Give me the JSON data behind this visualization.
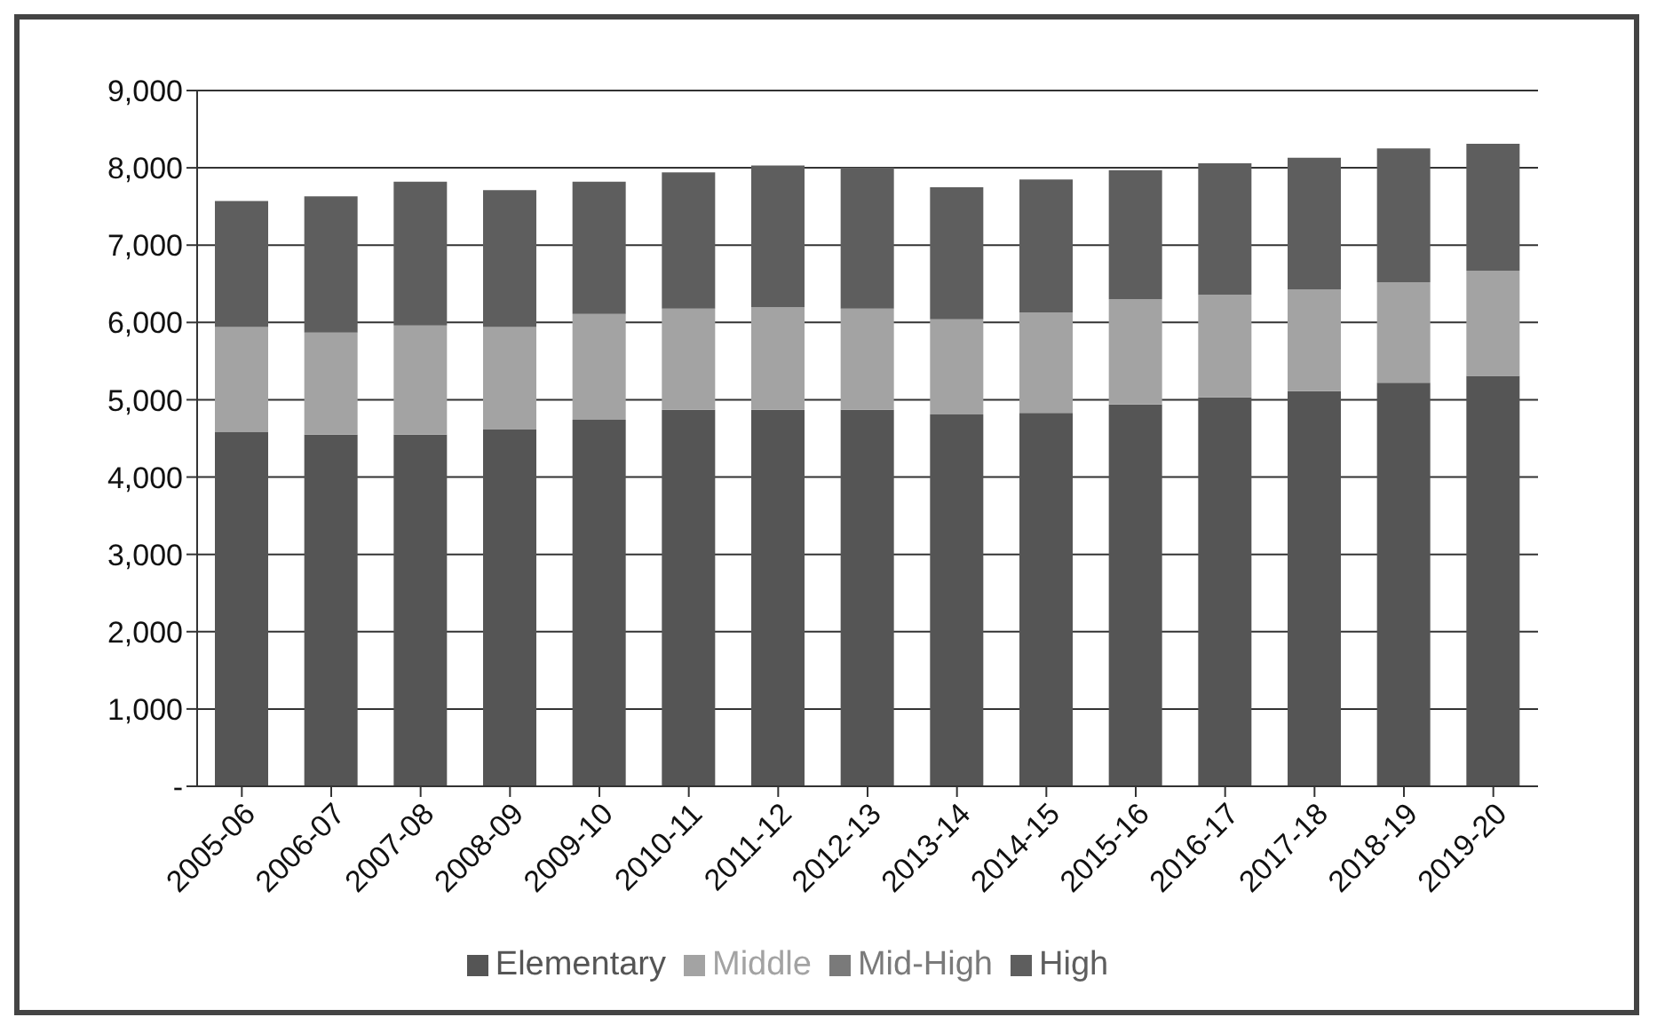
{
  "chart_data": {
    "type": "bar",
    "stacked": true,
    "categories": [
      "2005-06",
      "2006-07",
      "2007-08",
      "2008-09",
      "2009-10",
      "2010-11",
      "2011-12",
      "2012-13",
      "2013-14",
      "2014-15",
      "2015-16",
      "2016-17",
      "2017-18",
      "2018-19",
      "2019-20"
    ],
    "series": [
      {
        "name": "Elementary",
        "color": "#555555",
        "values": [
          4580,
          4550,
          4550,
          4620,
          4740,
          4870,
          4870,
          4870,
          4810,
          4830,
          4940,
          5030,
          5110,
          5220,
          5310
        ]
      },
      {
        "name": "Middle",
        "color": "#a3a3a3",
        "values": [
          1360,
          1320,
          1410,
          1320,
          1370,
          1310,
          1330,
          1310,
          1230,
          1300,
          1360,
          1330,
          1320,
          1300,
          1360
        ]
      },
      {
        "name": "Mid-High",
        "color": "#7a7a7a",
        "values": [
          null,
          null,
          null,
          null,
          null,
          null,
          null,
          null,
          null,
          null,
          null,
          null,
          null,
          null,
          null
        ]
      },
      {
        "name": "High",
        "color": "#5e5e5e",
        "values": [
          1630,
          1760,
          1860,
          1770,
          1710,
          1760,
          1830,
          1820,
          1710,
          1720,
          1670,
          1700,
          1700,
          1730,
          1640
        ]
      }
    ],
    "ylim": [
      0,
      9000
    ],
    "yticks": [
      {
        "value": 0,
        "label": "-"
      },
      {
        "value": 1000,
        "label": "1,000"
      },
      {
        "value": 2000,
        "label": "2,000"
      },
      {
        "value": 3000,
        "label": "3,000"
      },
      {
        "value": 4000,
        "label": "4,000"
      },
      {
        "value": 5000,
        "label": "5,000"
      },
      {
        "value": 6000,
        "label": "6,000"
      },
      {
        "value": 7000,
        "label": "7,000"
      },
      {
        "value": 8000,
        "label": "8,000"
      },
      {
        "value": 9000,
        "label": "9,000"
      }
    ],
    "grid": "y",
    "legend": "bottom"
  }
}
